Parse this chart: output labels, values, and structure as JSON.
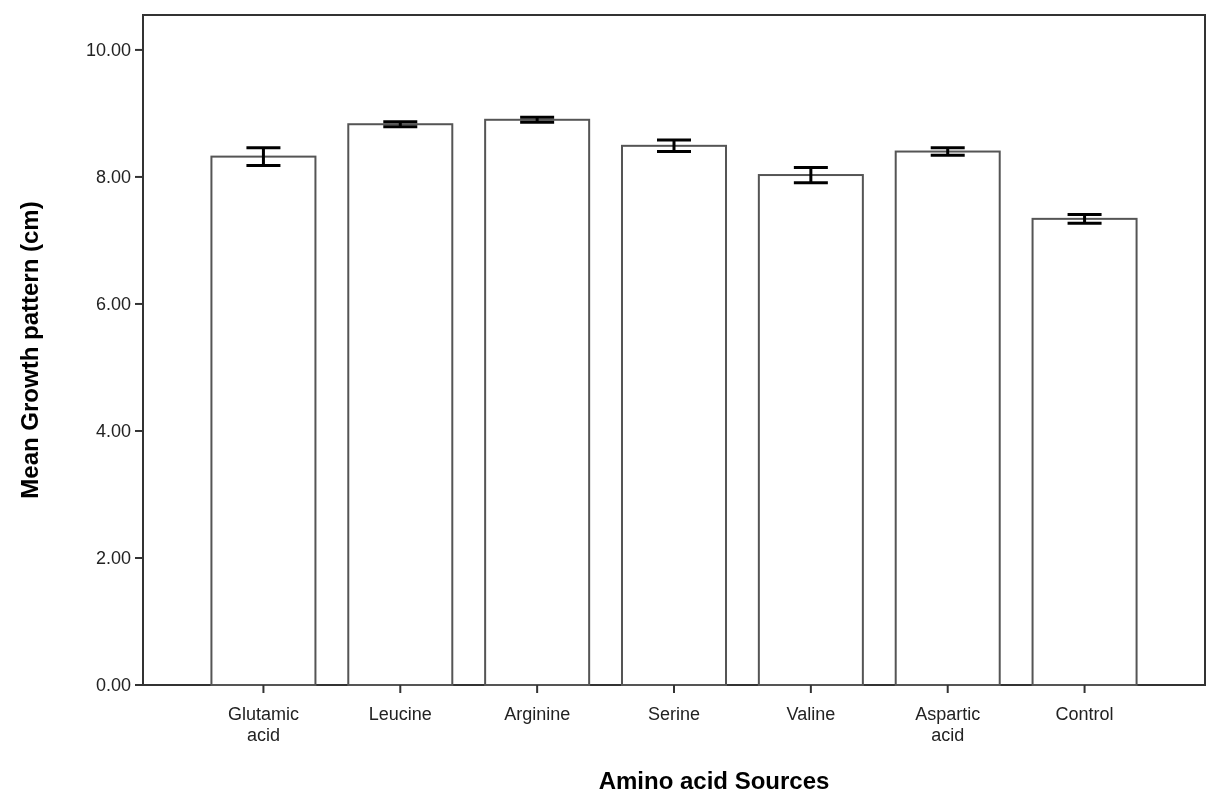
{
  "chart_data": {
    "type": "bar",
    "xlabel": "Amino acid Sources",
    "ylabel": "Mean Growth pattern (cm)",
    "categories": [
      "Glutamic acid",
      "Leucine",
      "Arginine",
      "Serine",
      "Valine",
      "Aspartic acid",
      "Control"
    ],
    "values": [
      8.32,
      8.83,
      8.9,
      8.49,
      8.03,
      8.4,
      7.34
    ],
    "errors": [
      0.14,
      0.04,
      0.04,
      0.09,
      0.12,
      0.06,
      0.07
    ],
    "color": "#ffffff",
    "ylim": [
      0,
      10.55
    ],
    "yticks": [
      {
        "value": 0,
        "label": "0.00"
      },
      {
        "value": 2,
        "label": "2.00"
      },
      {
        "value": 4,
        "label": "4.00"
      },
      {
        "value": 6,
        "label": "6.00"
      },
      {
        "value": 8,
        "label": "8.00"
      },
      {
        "value": 10,
        "label": "10.00"
      }
    ],
    "grid": false
  }
}
